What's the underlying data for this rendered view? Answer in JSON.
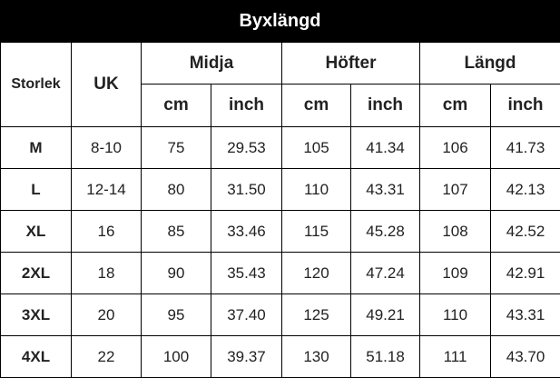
{
  "title": "Byxlängd",
  "table": {
    "header": {
      "size": "Storlek",
      "uk": "UK",
      "groups": [
        "Midja",
        "Höfter",
        "Längd"
      ],
      "units": [
        "cm",
        "inch",
        "cm",
        "inch",
        "cm",
        "inch"
      ]
    },
    "rows": [
      [
        "M",
        "8-10",
        "75",
        "29.53",
        "105",
        "41.34",
        "106",
        "41.73"
      ],
      [
        "L",
        "12-14",
        "80",
        "31.50",
        "110",
        "43.31",
        "107",
        "42.13"
      ],
      [
        "XL",
        "16",
        "85",
        "33.46",
        "115",
        "45.28",
        "108",
        "42.52"
      ],
      [
        "2XL",
        "18",
        "90",
        "35.43",
        "120",
        "47.24",
        "109",
        "42.91"
      ],
      [
        "3XL",
        "20",
        "95",
        "37.40",
        "125",
        "49.21",
        "110",
        "43.31"
      ],
      [
        "4XL",
        "22",
        "100",
        "39.37",
        "130",
        "51.18",
        "111",
        "43.70"
      ]
    ]
  }
}
